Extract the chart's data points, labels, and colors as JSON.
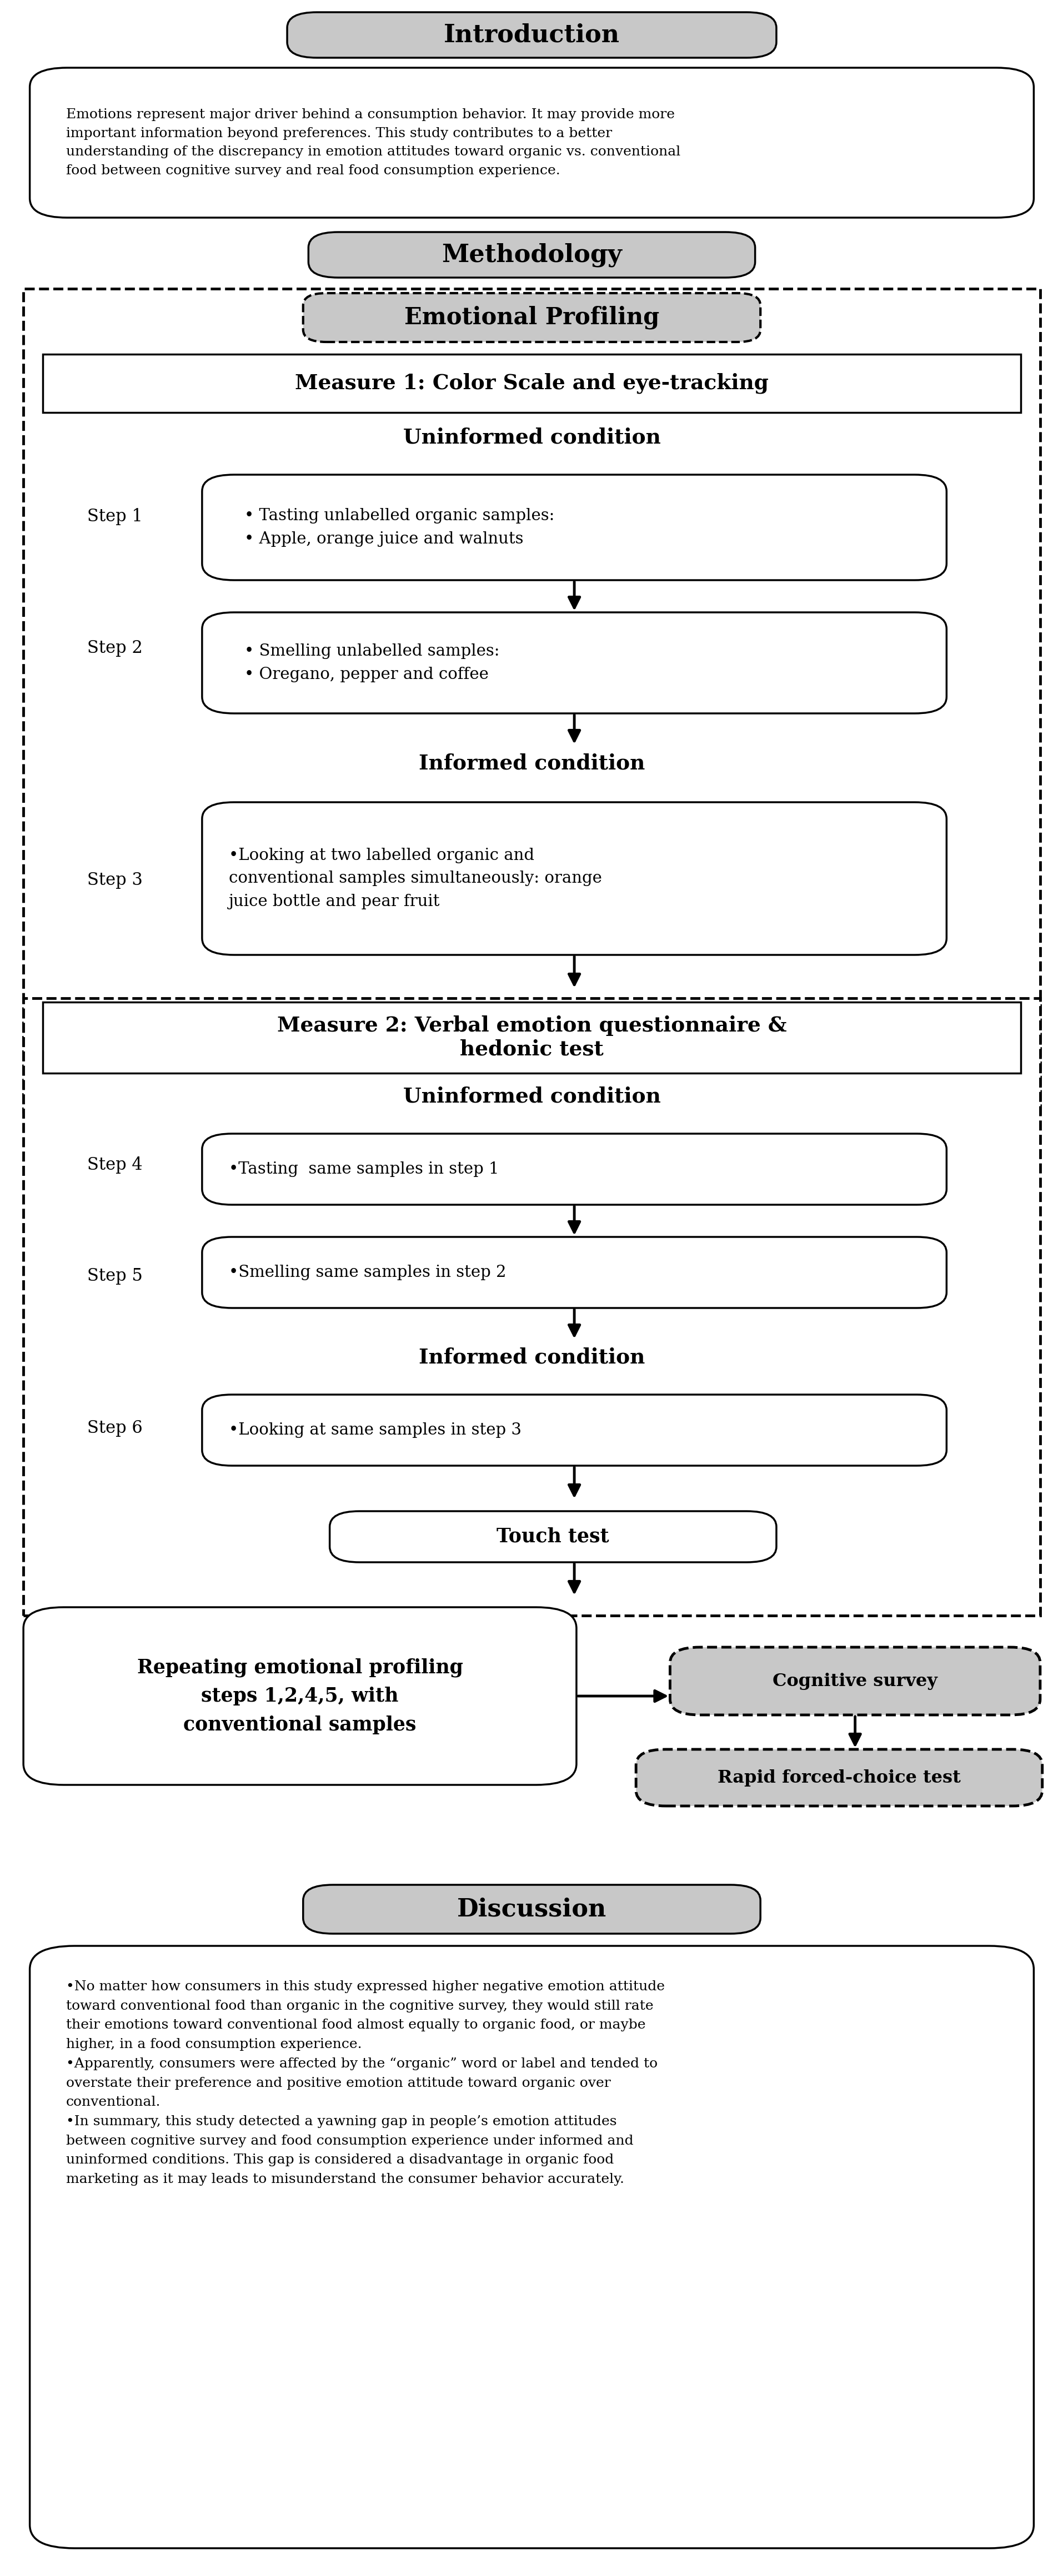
{
  "fig_width": 19.15,
  "fig_height": 46.4,
  "bg_color": "#ffffff",
  "gray_color": "#c8c8c8",
  "intro_title": "Introduction",
  "intro_text": "Emotions represent major driver behind a consumption behavior. It may provide more\nimportant information beyond preferences. This study contributes to a better\nunderstanding of the discrepancy in emotion attitudes toward organic vs. conventional\nfood between cognitive survey and real food consumption experience.",
  "methodology_title": "Methodology",
  "emotional_profiling_title": "Emotional Profiling",
  "measure1_title": "Measure 1: Color Scale and eye-tracking",
  "uninformed1_title": "Uninformed condition",
  "step1_label": "Step 1",
  "step1_text": "• Tasting unlabelled organic samples:\n• Apple, orange juice and walnuts",
  "step2_label": "Step 2",
  "step2_text": "• Smelling unlabelled samples:\n• Oregano, pepper and coffee",
  "informed1_title": "Informed condition",
  "step3_label": "Step 3",
  "step3_text": "•Looking at two labelled organic and\nconventional samples simultaneously: orange\njuice bottle and pear fruit",
  "measure2_title": "Measure 2: Verbal emotion questionnaire &\nhedonic test",
  "uninformed2_title": "Uninformed condition",
  "step4_label": "Step 4",
  "step4_text": "•Tasting  same samples in step 1",
  "step5_label": "Step 5",
  "step5_text": "•Smelling same samples in step 2",
  "informed2_title": "Informed condition",
  "step6_label": "Step 6",
  "step6_text": "•Looking at same samples in step 3",
  "touch_test": "Touch test",
  "repeat_text": "Repeating emotional profiling\nsteps 1,2,4,5, with\nconventional samples",
  "cognitive_survey": "Cognitive survey",
  "rapid_test": "Rapid forced-choice test",
  "discussion_title": "Discussion",
  "discussion_text": "•No matter how consumers in this study expressed higher negative emotion attitude\ntoward conventional food than organic in the cognitive survey, they would still rate\ntheir emotions toward conventional food almost equally to organic food, or maybe\nhigher, in a food consumption experience.\n•Apparently, consumers were affected by the “organic” word or label and tended to\noverstate their preference and positive emotion attitude toward organic over\nconventional.\n•In summary, this study detected a yawning gap in people’s emotion attitudes\nbetween cognitive survey and food consumption experience under informed and\nuninformed conditions. This gap is considered a disadvantage in organic food\nmarketing as it may leads to misunderstand the consumer behavior accurately."
}
